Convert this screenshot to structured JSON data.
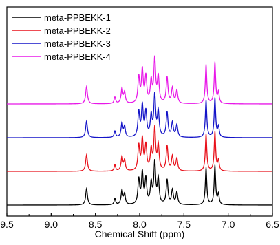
{
  "chart_data": {
    "type": "line",
    "title": "",
    "xlabel": "Chemical Shift (ppm)",
    "ylabel": "",
    "xlim": [
      9.5,
      6.5
    ],
    "x_reversed": true,
    "x_ticks": [
      "9.5",
      "9.0",
      "8.5",
      "8.0",
      "7.5",
      "7.0",
      "6.5"
    ],
    "grid": false,
    "legend_position": "top-left",
    "y_ticks": "none",
    "peaks": [
      {
        "ppm": 8.6,
        "h": 0.4,
        "w": 0.012
      },
      {
        "ppm": 8.28,
        "h": 0.15,
        "w": 0.01
      },
      {
        "ppm": 8.2,
        "h": 0.35,
        "w": 0.012
      },
      {
        "ppm": 8.17,
        "h": 0.25,
        "w": 0.01
      },
      {
        "ppm": 8.01,
        "h": 0.6,
        "w": 0.012
      },
      {
        "ppm": 7.97,
        "h": 0.75,
        "w": 0.012
      },
      {
        "ppm": 7.93,
        "h": 0.6,
        "w": 0.012
      },
      {
        "ppm": 7.87,
        "h": 0.5,
        "w": 0.012
      },
      {
        "ppm": 7.83,
        "h": 1.0,
        "w": 0.012
      },
      {
        "ppm": 7.79,
        "h": 0.6,
        "w": 0.012
      },
      {
        "ppm": 7.69,
        "h": 0.6,
        "w": 0.012
      },
      {
        "ppm": 7.63,
        "h": 0.35,
        "w": 0.012
      },
      {
        "ppm": 7.58,
        "h": 0.3,
        "w": 0.012
      },
      {
        "ppm": 7.25,
        "h": 0.9,
        "w": 0.01
      },
      {
        "ppm": 7.15,
        "h": 0.95,
        "w": 0.01
      },
      {
        "ppm": 7.11,
        "h": 0.25,
        "w": 0.01
      }
    ],
    "series": [
      {
        "name": "meta-PPBEKK-1",
        "color": "#000000",
        "scale": 1.0
      },
      {
        "name": "meta-PPBEKK-2",
        "color": "#e8101a",
        "scale": 1.0
      },
      {
        "name": "meta-PPBEKK-3",
        "color": "#1414c8",
        "scale": 1.0
      },
      {
        "name": "meta-PPBEKK-4",
        "color": "#e818e8",
        "scale": 1.05
      }
    ]
  }
}
